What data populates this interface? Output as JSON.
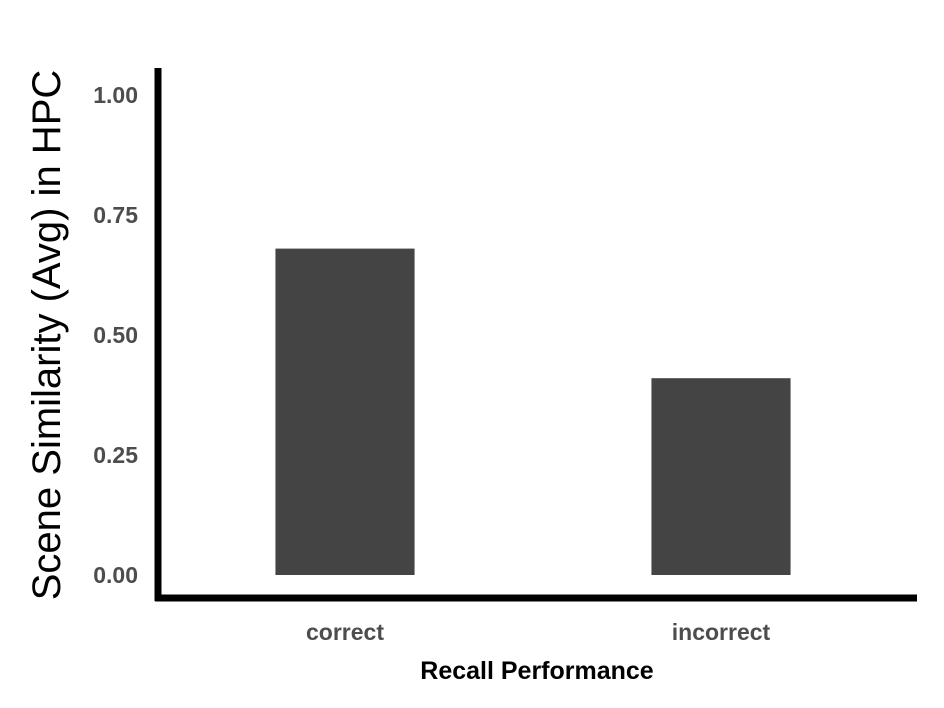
{
  "chart_data": {
    "type": "bar",
    "categories": [
      "correct",
      "incorrect"
    ],
    "values": [
      0.68,
      0.41
    ],
    "title": "",
    "xlabel": "Recall Performance",
    "ylabel": "Scene Similarity (Avg) in HPC",
    "ylim": [
      0,
      1.0
    ],
    "yticks": [
      "0.00",
      "0.25",
      "0.50",
      "0.75",
      "1.00"
    ],
    "grid": false,
    "legend": "none",
    "bar_color": "#444444",
    "axis_color": "#000000"
  }
}
